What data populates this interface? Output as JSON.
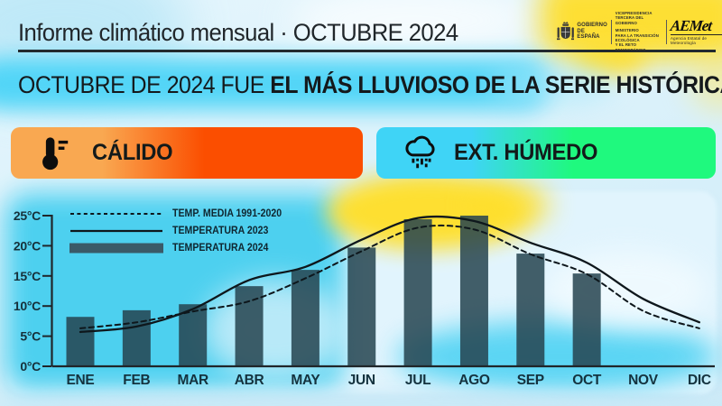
{
  "header": {
    "title": "Informe climático mensual · OCTUBRE 2024",
    "logos": {
      "gobierno_line1": "GOBIERNO",
      "gobierno_line2": "DE ESPAÑA",
      "ministry": [
        "VICEPRESIDENCIA",
        "TERCERA DEL GOBIERNO",
        "MINISTERIO",
        "PARA LA TRANSICIÓN ECOLÓGICA",
        "Y EL RETO DEMOGRÁFICO"
      ],
      "aemet_name": "AEMet",
      "aemet_sub": "Agencia Estatal de Meteorología"
    }
  },
  "headline": {
    "normal": "OCTUBRE DE 2024 FUE ",
    "bold": "EL MÁS LLUVIOSO DE LA SERIE HISTÓRICA"
  },
  "badges": [
    {
      "label": "CÁLIDO",
      "icon": "thermometer-icon"
    },
    {
      "label": "EXT. HÚMEDO",
      "icon": "rain-cloud-icon"
    }
  ],
  "colors": {
    "warm_gradient_start": "#F9A851",
    "warm_gradient_end": "#FB4E00",
    "wet_gradient_start": "#3FD4F6",
    "wet_gradient_end": "#1FF97E",
    "accent_yellow": "#FFDF2E",
    "chart_cyan": "#47CFEF",
    "bar_fill": "#24434F",
    "line_color": "#0E171C",
    "ink": "#20262A"
  },
  "chart_data": {
    "type": "bar",
    "categories": [
      "ENE",
      "FEB",
      "MAR",
      "ABR",
      "MAY",
      "JUN",
      "JUL",
      "AGO",
      "SEP",
      "OCT",
      "NOV",
      "DIC"
    ],
    "y_ticks": [
      "0°C",
      "5°C",
      "10°C",
      "15°C",
      "20°C",
      "25°C"
    ],
    "ylim": [
      0,
      25
    ],
    "grid": false,
    "legend_position": "top-left",
    "series": [
      {
        "name": "TEMP. MEDIA 1991-2020",
        "type": "line",
        "style": "dashed",
        "values": [
          6.3,
          7.3,
          9.1,
          10.8,
          14.6,
          19.1,
          23.0,
          22.7,
          18.6,
          15.3,
          9.2,
          6.3
        ]
      },
      {
        "name": "TEMPERATURA 2023",
        "type": "line",
        "style": "solid",
        "values": [
          5.7,
          6.6,
          9.5,
          14.3,
          16.5,
          21.0,
          24.6,
          24.1,
          20.5,
          17.2,
          11.2,
          7.3
        ]
      },
      {
        "name": "TEMPERATURA 2024",
        "type": "bar",
        "values": [
          8.2,
          9.3,
          10.3,
          13.3,
          16.0,
          19.7,
          24.4,
          25.0,
          18.7,
          15.4,
          null,
          null
        ]
      }
    ]
  }
}
